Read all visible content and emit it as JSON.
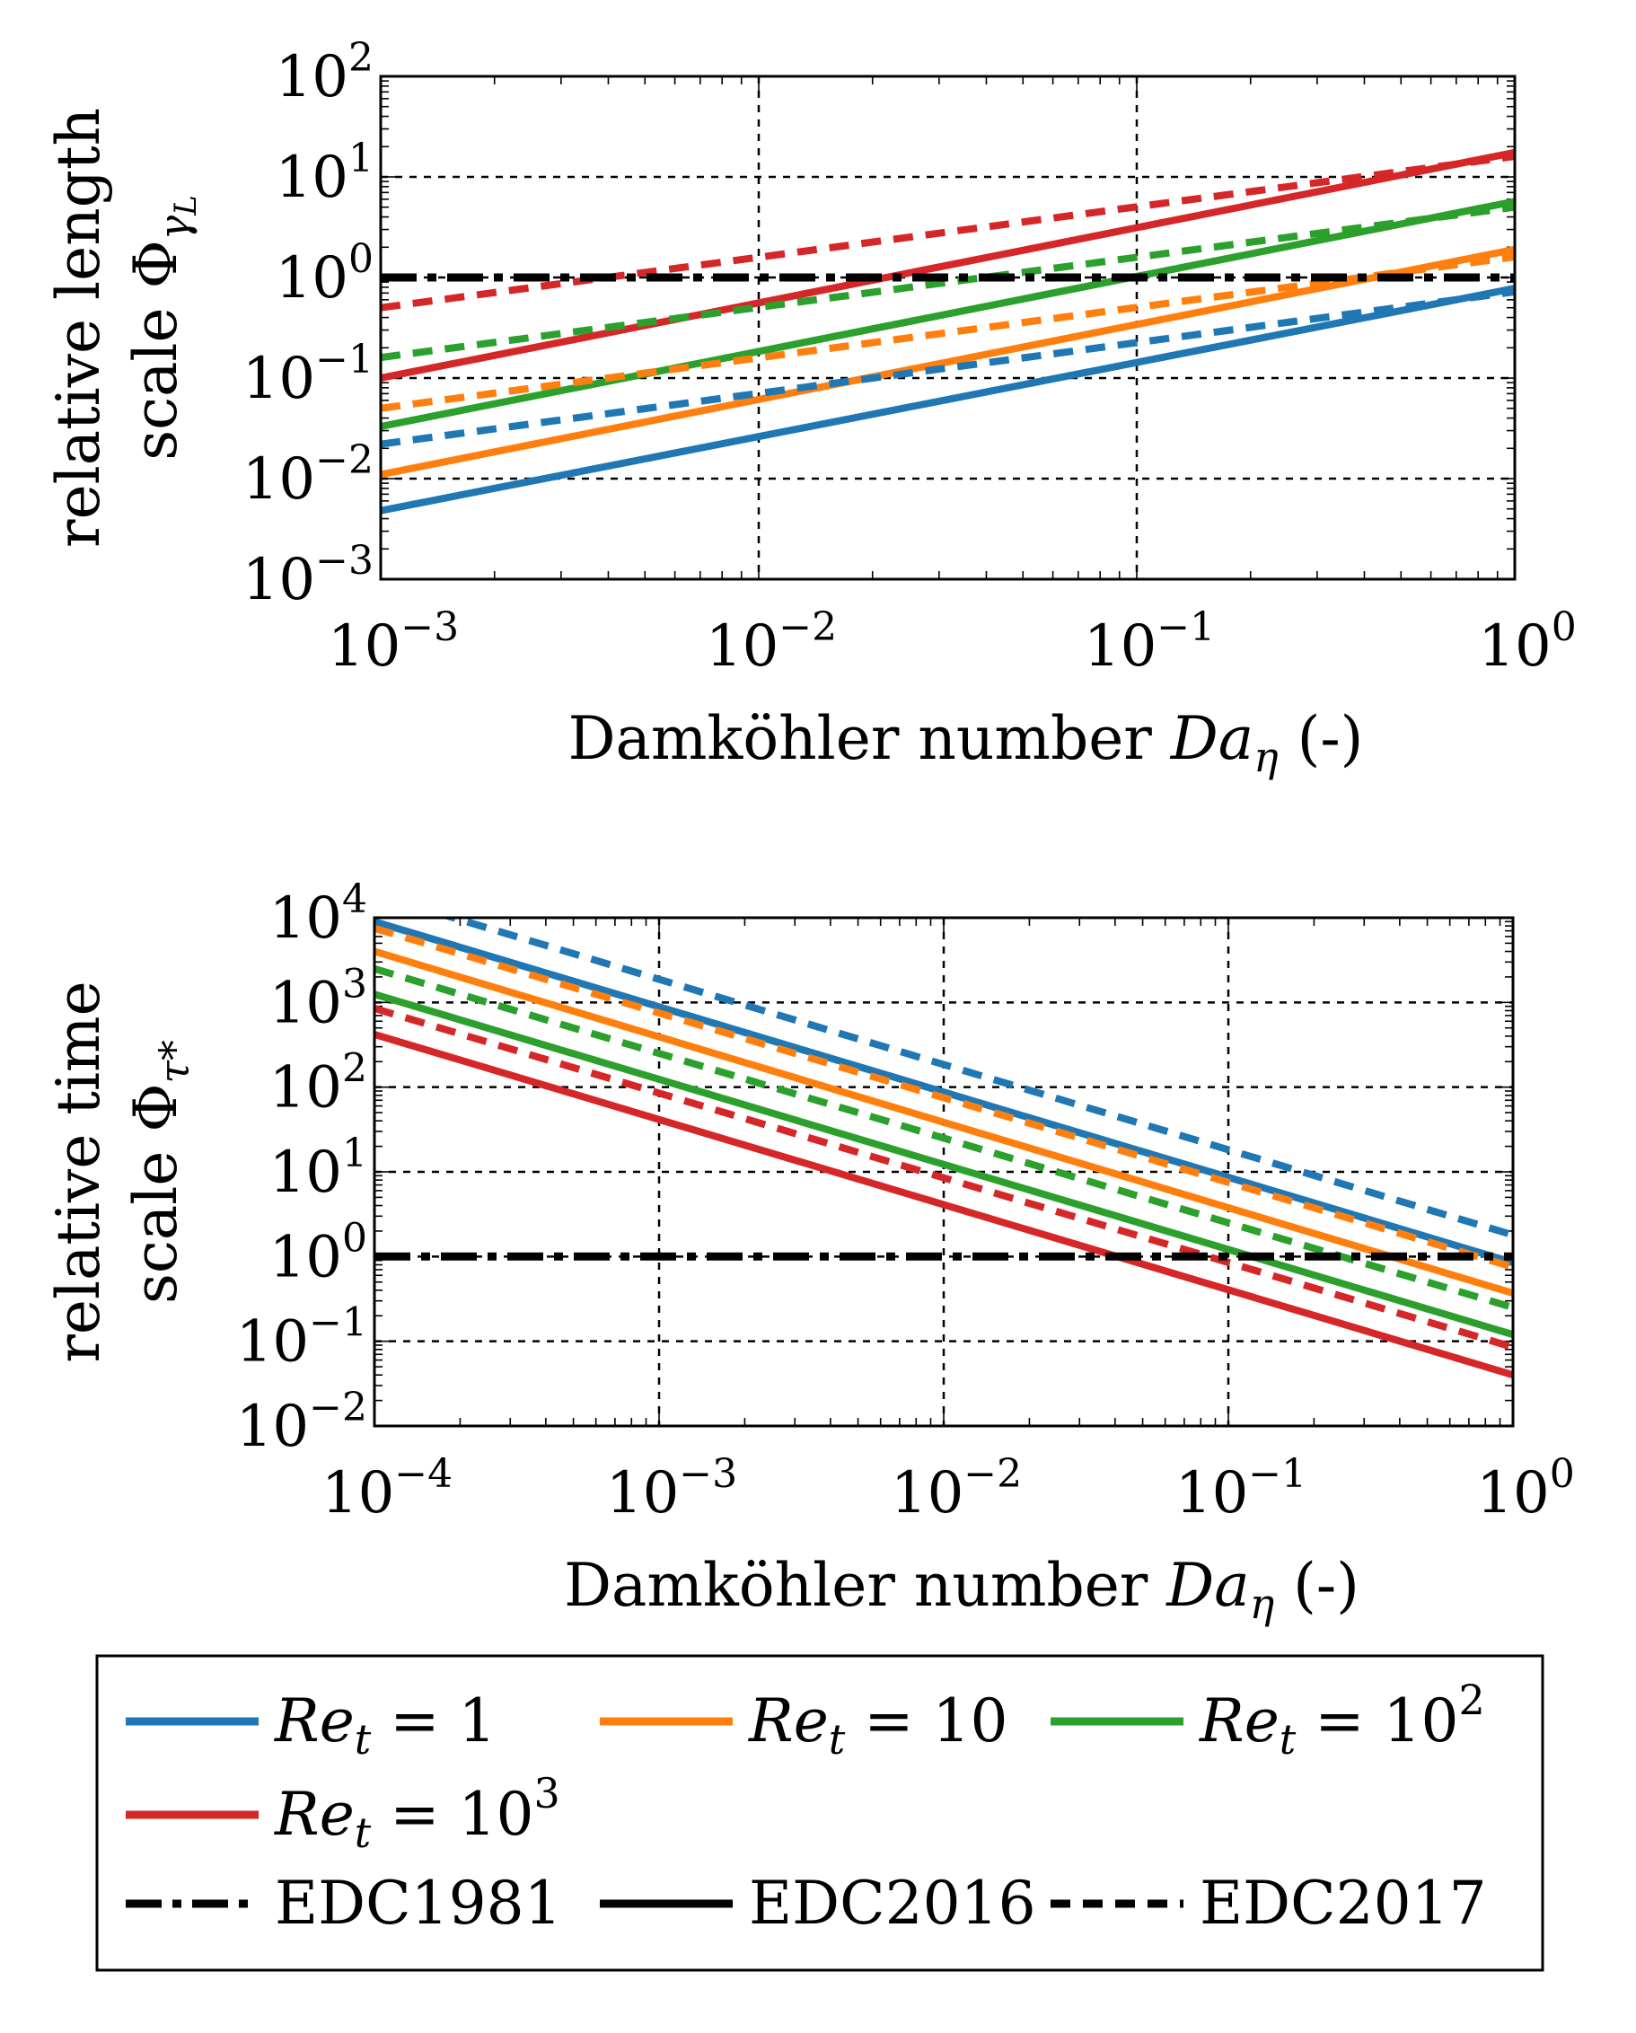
{
  "colors": {
    "Re_1": "#1f77b4",
    "Re_10": "#ff7f0e",
    "Re_100": "#2ca02c",
    "Re_1000": "#d62728",
    "edc1981": "#000000"
  },
  "chart_data": [
    {
      "type": "line",
      "name": "length-scale",
      "xlabel_text": "Damköhler number ",
      "xlabel_symbol": "Da",
      "xlabel_sub": "η",
      "xlabel_unit": " (-)",
      "ylabel_line1": "relative length",
      "ylabel_line2_text": "scale Φ",
      "ylabel_line2_sub": "γ",
      "ylabel_line2_subsub": "L",
      "xscale": "log",
      "yscale": "log",
      "xlim": [
        0.001,
        1
      ],
      "ylim": [
        0.001,
        100
      ],
      "xticks": [
        {
          "base": "10",
          "exp": "−3"
        },
        {
          "base": "10",
          "exp": "−2"
        },
        {
          "base": "10",
          "exp": "−1"
        },
        {
          "base": "10",
          "exp": "0"
        }
      ],
      "yticks": [
        {
          "base": "10",
          "exp": "−3"
        },
        {
          "base": "10",
          "exp": "−2"
        },
        {
          "base": "10",
          "exp": "−1"
        },
        {
          "base": "10",
          "exp": "0"
        },
        {
          "base": "10",
          "exp": "1"
        },
        {
          "base": "10",
          "exp": "2"
        }
      ],
      "grid": true,
      "series": [
        {
          "key": "Re_1",
          "model": "EDC2016",
          "x": [
            0.001,
            1
          ],
          "y": [
            0.0048,
            0.78
          ]
        },
        {
          "key": "Re_10",
          "model": "EDC2016",
          "x": [
            0.001,
            1
          ],
          "y": [
            0.011,
            1.9
          ]
        },
        {
          "key": "Re_100",
          "model": "EDC2016",
          "x": [
            0.001,
            1
          ],
          "y": [
            0.033,
            5.7
          ]
        },
        {
          "key": "Re_1000",
          "model": "EDC2016",
          "x": [
            0.001,
            1
          ],
          "y": [
            0.1,
            17.5
          ]
        },
        {
          "key": "Re_1",
          "model": "EDC2017",
          "x": [
            0.001,
            1
          ],
          "y": [
            0.022,
            0.72
          ]
        },
        {
          "key": "Re_10",
          "model": "EDC2017",
          "x": [
            0.001,
            1
          ],
          "y": [
            0.05,
            1.6
          ]
        },
        {
          "key": "Re_100",
          "model": "EDC2017",
          "x": [
            0.001,
            1
          ],
          "y": [
            0.16,
            5.0
          ]
        },
        {
          "key": "Re_1000",
          "model": "EDC2017",
          "x": [
            0.001,
            1
          ],
          "y": [
            0.5,
            16.0
          ]
        },
        {
          "key": "edc1981",
          "model": "EDC1981",
          "x": [
            0.001,
            1
          ],
          "y": [
            1,
            1
          ]
        }
      ]
    },
    {
      "type": "line",
      "name": "time-scale",
      "xlabel_text": "Damköhler number ",
      "xlabel_symbol": "Da",
      "xlabel_sub": "η",
      "xlabel_unit": " (-)",
      "ylabel_line1": "relative time",
      "ylabel_line2_text": "scale Φ",
      "ylabel_line2_sub": "τ*",
      "ylabel_line2_subsub": "",
      "xscale": "log",
      "yscale": "log",
      "xlim": [
        0.0001,
        1
      ],
      "ylim": [
        0.01,
        10000
      ],
      "xticks": [
        {
          "base": "10",
          "exp": "−4"
        },
        {
          "base": "10",
          "exp": "−3"
        },
        {
          "base": "10",
          "exp": "−2"
        },
        {
          "base": "10",
          "exp": "−1"
        },
        {
          "base": "10",
          "exp": "0"
        }
      ],
      "yticks": [
        {
          "base": "10",
          "exp": "−2"
        },
        {
          "base": "10",
          "exp": "−1"
        },
        {
          "base": "10",
          "exp": "0"
        },
        {
          "base": "10",
          "exp": "1"
        },
        {
          "base": "10",
          "exp": "2"
        },
        {
          "base": "10",
          "exp": "3"
        },
        {
          "base": "10",
          "exp": "4"
        }
      ],
      "grid": true,
      "series": [
        {
          "key": "Re_1",
          "model": "EDC2016",
          "x": [
            0.0001,
            1
          ],
          "y": [
            9000,
            0.85
          ]
        },
        {
          "key": "Re_10",
          "model": "EDC2016",
          "x": [
            0.0001,
            1
          ],
          "y": [
            4000,
            0.37
          ]
        },
        {
          "key": "Re_100",
          "model": "EDC2016",
          "x": [
            0.0001,
            1
          ],
          "y": [
            1250,
            0.12
          ]
        },
        {
          "key": "Re_1000",
          "model": "EDC2016",
          "x": [
            0.0001,
            1
          ],
          "y": [
            420,
            0.04
          ]
        },
        {
          "key": "Re_1",
          "model": "EDC2017",
          "x": [
            0.0001,
            1
          ],
          "y": [
            19000,
            1.8
          ]
        },
        {
          "key": "Re_10",
          "model": "EDC2017",
          "x": [
            0.0001,
            1
          ],
          "y": [
            7500,
            0.75
          ]
        },
        {
          "key": "Re_100",
          "model": "EDC2017",
          "x": [
            0.0001,
            1
          ],
          "y": [
            2500,
            0.25
          ]
        },
        {
          "key": "Re_1000",
          "model": "EDC2017",
          "x": [
            0.0001,
            1
          ],
          "y": [
            850,
            0.085
          ]
        },
        {
          "key": "edc1981",
          "model": "EDC1981",
          "x": [
            0.0001,
            1
          ],
          "y": [
            1,
            1
          ]
        }
      ]
    }
  ],
  "legend": {
    "placement": "bottom",
    "entries": [
      {
        "key": "Re_1",
        "kind": "color",
        "sym": "Re",
        "sub": "t",
        "rel": " = 1",
        "exp": ""
      },
      {
        "key": "Re_10",
        "kind": "color",
        "sym": "Re",
        "sub": "t",
        "rel": " = 10",
        "exp": ""
      },
      {
        "key": "Re_100",
        "kind": "color",
        "sym": "Re",
        "sub": "t",
        "rel": " = 10",
        "exp": "2"
      },
      {
        "key": "Re_1000",
        "kind": "color",
        "sym": "Re",
        "sub": "t",
        "rel": " = 10",
        "exp": "3"
      },
      {
        "key": "EDC1981",
        "kind": "dashdot",
        "label": "EDC1981"
      },
      {
        "key": "EDC2016",
        "kind": "solid",
        "label": "EDC2016"
      },
      {
        "key": "EDC2017",
        "kind": "dashed",
        "label": "EDC2017"
      }
    ]
  }
}
